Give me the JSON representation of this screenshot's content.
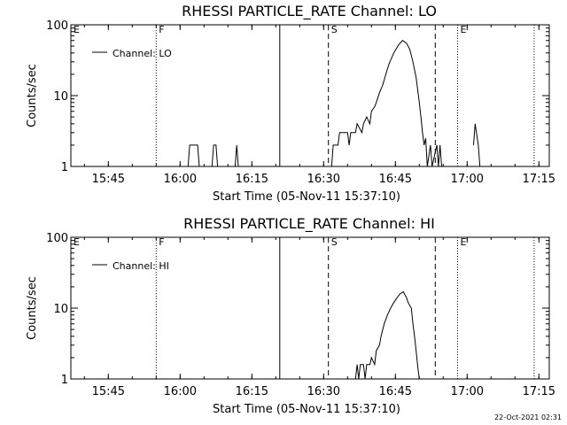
{
  "timestamp": "22-Oct-2021 02:31",
  "chart_data": [
    {
      "type": "line",
      "title": "RHESSI PARTICLE_RATE Channel: LO",
      "xlabel": "Start Time (05-Nov-11 15:37:10)",
      "ylabel": "Counts/sec",
      "yscale": "log",
      "xlim": [
        "15:37:10",
        "17:17:10"
      ],
      "ylim": [
        1,
        100
      ],
      "x_ticks": [
        "15:45",
        "16:00",
        "16:15",
        "16:30",
        "16:45",
        "17:00",
        "17:15"
      ],
      "y_ticks": [
        "1",
        "10",
        "100"
      ],
      "legend": {
        "position": "top-left",
        "entries": [
          "Channel: LO"
        ]
      },
      "markers": [
        {
          "label": "E",
          "time": "15:37:10",
          "style": "none"
        },
        {
          "label": "F",
          "time": "15:55:00",
          "style": "dotted"
        },
        {
          "label": "",
          "time": "16:20:50",
          "style": "solid"
        },
        {
          "label": "S",
          "time": "16:31:00",
          "style": "dashed"
        },
        {
          "label": "",
          "time": "16:53:20",
          "style": "dashed"
        },
        {
          "label": "E",
          "time": "16:58:00",
          "style": "dotted"
        },
        {
          "label": "",
          "time": "17:14:00",
          "style": "dotted"
        }
      ],
      "series": [
        {
          "name": "Channel: LO",
          "segments": [
            [
              [
                "16:01:40",
                1
              ],
              [
                "16:02:00",
                2
              ],
              [
                "16:03:40",
                2
              ],
              [
                "16:04:00",
                1
              ]
            ],
            [
              [
                "16:06:40",
                1
              ],
              [
                "16:07:00",
                2
              ],
              [
                "16:07:30",
                2
              ],
              [
                "16:07:50",
                1
              ]
            ],
            [
              [
                "16:11:30",
                1
              ],
              [
                "16:11:50",
                2
              ],
              [
                "16:12:10",
                1
              ]
            ],
            [
              [
                "16:31:40",
                1
              ],
              [
                "16:32:00",
                2
              ],
              [
                "16:33:00",
                2
              ],
              [
                "16:33:20",
                3
              ],
              [
                "16:35:00",
                3
              ],
              [
                "16:35:20",
                2
              ],
              [
                "16:35:40",
                3
              ],
              [
                "16:36:40",
                3
              ],
              [
                "16:37:00",
                4
              ],
              [
                "16:38:00",
                3
              ],
              [
                "16:38:20",
                4
              ],
              [
                "16:39:00",
                5
              ],
              [
                "16:39:40",
                4
              ],
              [
                "16:40:00",
                6
              ],
              [
                "16:40:40",
                7
              ],
              [
                "16:41:00",
                8
              ],
              [
                "16:41:40",
                11
              ],
              [
                "16:42:20",
                14
              ],
              [
                "16:43:00",
                20
              ],
              [
                "16:43:40",
                28
              ],
              [
                "16:44:40",
                40
              ],
              [
                "16:45:40",
                52
              ],
              [
                "16:46:30",
                60
              ],
              [
                "16:47:20",
                55
              ],
              [
                "16:48:00",
                45
              ],
              [
                "16:48:40",
                30
              ],
              [
                "16:49:20",
                18
              ],
              [
                "16:49:40",
                12
              ],
              [
                "16:50:00",
                8
              ],
              [
                "16:50:20",
                5
              ],
              [
                "16:50:40",
                3
              ],
              [
                "16:51:00",
                2
              ],
              [
                "16:51:20",
                2.5
              ],
              [
                "16:51:40",
                1
              ],
              [
                "16:52:20",
                2
              ],
              [
                "16:52:40",
                1
              ],
              [
                "16:53:40",
                2
              ],
              [
                "16:54:00",
                1
              ],
              [
                "16:54:20",
                2
              ],
              [
                "16:54:40",
                1
              ]
            ],
            [
              [
                "17:01:20",
                2
              ],
              [
                "17:01:40",
                4
              ],
              [
                "17:02:20",
                2
              ],
              [
                "17:02:40",
                1
              ]
            ]
          ]
        }
      ]
    },
    {
      "type": "line",
      "title": "RHESSI PARTICLE_RATE Channel: HI",
      "xlabel": "Start Time (05-Nov-11 15:37:10)",
      "ylabel": "Counts/sec",
      "yscale": "log",
      "xlim": [
        "15:37:10",
        "17:17:10"
      ],
      "ylim": [
        1,
        100
      ],
      "x_ticks": [
        "15:45",
        "16:00",
        "16:15",
        "16:30",
        "16:45",
        "17:00",
        "17:15"
      ],
      "y_ticks": [
        "1",
        "10",
        "100"
      ],
      "legend": {
        "position": "top-left",
        "entries": [
          "Channel: HI"
        ]
      },
      "markers": [
        {
          "label": "E",
          "time": "15:37:10",
          "style": "none"
        },
        {
          "label": "F",
          "time": "15:55:00",
          "style": "dotted"
        },
        {
          "label": "",
          "time": "16:20:50",
          "style": "solid"
        },
        {
          "label": "S",
          "time": "16:31:00",
          "style": "dashed"
        },
        {
          "label": "",
          "time": "16:53:20",
          "style": "dashed"
        },
        {
          "label": "E",
          "time": "16:58:00",
          "style": "dotted"
        },
        {
          "label": "",
          "time": "17:14:00",
          "style": "dotted"
        }
      ],
      "series": [
        {
          "name": "Channel: HI",
          "segments": [
            [
              [
                "16:36:40",
                1
              ],
              [
                "16:37:00",
                1.6
              ],
              [
                "16:37:20",
                1
              ],
              [
                "16:37:40",
                1.6
              ],
              [
                "16:38:20",
                1.6
              ],
              [
                "16:38:40",
                1
              ],
              [
                "16:39:00",
                1.6
              ],
              [
                "16:39:40",
                1.6
              ],
              [
                "16:40:00",
                2
              ],
              [
                "16:40:40",
                1.6
              ],
              [
                "16:41:00",
                2.5
              ],
              [
                "16:41:40",
                3
              ],
              [
                "16:42:00",
                4
              ],
              [
                "16:42:40",
                6
              ],
              [
                "16:43:20",
                8
              ],
              [
                "16:44:00",
                10
              ],
              [
                "16:44:40",
                12
              ],
              [
                "16:45:20",
                14
              ],
              [
                "16:46:00",
                16
              ],
              [
                "16:46:40",
                17
              ],
              [
                "16:47:20",
                14
              ],
              [
                "16:47:40",
                12
              ],
              [
                "16:48:20",
                10
              ],
              [
                "16:48:40",
                6
              ],
              [
                "16:49:00",
                4
              ],
              [
                "16:49:20",
                2.5
              ],
              [
                "16:49:40",
                1.5
              ],
              [
                "16:50:00",
                1
              ]
            ]
          ]
        }
      ]
    }
  ]
}
